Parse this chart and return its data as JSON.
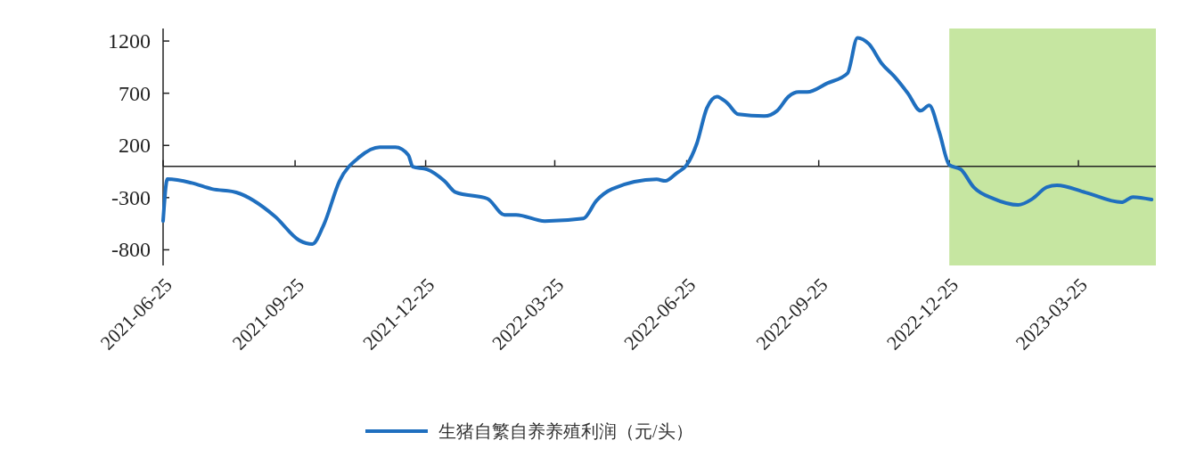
{
  "chart_data": {
    "type": "line",
    "x": [
      "2021-06-25",
      "2021-06-28",
      "2021-07-15",
      "2021-07-29",
      "2021-08-15",
      "2021-09-11",
      "2021-09-28",
      "2021-10-07",
      "2021-10-15",
      "2021-10-26",
      "2021-11-09",
      "2021-11-23",
      "2021-12-04",
      "2021-12-13",
      "2021-12-16",
      "2021-12-26",
      "2022-01-07",
      "2022-01-15",
      "2022-02-06",
      "2022-02-18",
      "2022-02-26",
      "2022-03-18",
      "2022-04-14",
      "2022-04-23",
      "2022-05-04",
      "2022-06-04",
      "2022-06-10",
      "2022-06-18",
      "2022-06-25",
      "2022-07-02",
      "2022-07-09",
      "2022-07-16",
      "2022-07-23",
      "2022-07-31",
      "2022-08-18",
      "2022-08-27",
      "2022-09-04",
      "2022-09-11",
      "2022-09-17",
      "2022-10-01",
      "2022-10-15",
      "2022-10-22",
      "2022-10-30",
      "2022-11-08",
      "2022-11-17",
      "2022-11-26",
      "2022-12-05",
      "2022-12-11",
      "2022-12-18",
      "2022-12-25",
      "2023-01-02",
      "2023-01-11",
      "2023-01-25",
      "2023-02-11",
      "2023-02-21",
      "2023-03-03",
      "2023-03-10",
      "2023-03-30",
      "2023-04-24",
      "2023-05-02",
      "2023-05-15"
    ],
    "series": [
      {
        "name": "生猪自繁自养养殖利润（元/头）",
        "color": "#1f6fbf",
        "values": [
          -525,
          -123,
          -160,
          -217,
          -250,
          -480,
          -710,
          -745,
          -560,
          -140,
          90,
          183,
          183,
          107,
          -4,
          -30,
          -140,
          -250,
          -310,
          -465,
          -465,
          -525,
          -500,
          -330,
          -217,
          -125,
          -140,
          -65,
          13,
          217,
          557,
          668,
          609,
          498,
          481,
          532,
          668,
          711,
          711,
          796,
          890,
          1231,
          1171,
          983,
          856,
          702,
          532,
          583,
          328,
          13,
          -30,
          -200,
          -311,
          -370,
          -311,
          -200,
          -183,
          -251,
          -345,
          -294,
          -319
        ]
      }
    ],
    "xlim": [
      "2021-06-25",
      "2023-05-18"
    ],
    "xticks": [
      {
        "value": "2021-06-25",
        "label": "2021-06-25"
      },
      {
        "value": "2021-09-25",
        "label": "2021-09-25"
      },
      {
        "value": "2021-12-25",
        "label": "2021-12-25"
      },
      {
        "value": "2022-03-25",
        "label": "2022-03-25"
      },
      {
        "value": "2022-06-25",
        "label": "2022-06-25"
      },
      {
        "value": "2022-09-25",
        "label": "2022-09-25"
      },
      {
        "value": "2022-12-25",
        "label": "2022-12-25"
      },
      {
        "value": "2023-03-25",
        "label": "2023-03-25"
      }
    ],
    "ylim": [
      -950,
      1320
    ],
    "yticks": [
      1200,
      700,
      200,
      -300,
      -800
    ],
    "bands": [
      {
        "axis": "x",
        "from": "2022-12-25",
        "to": "2023-05-18",
        "color": "#c6e6a1"
      }
    ],
    "legend": "bottom",
    "line_style": "solid",
    "marker": "none"
  }
}
